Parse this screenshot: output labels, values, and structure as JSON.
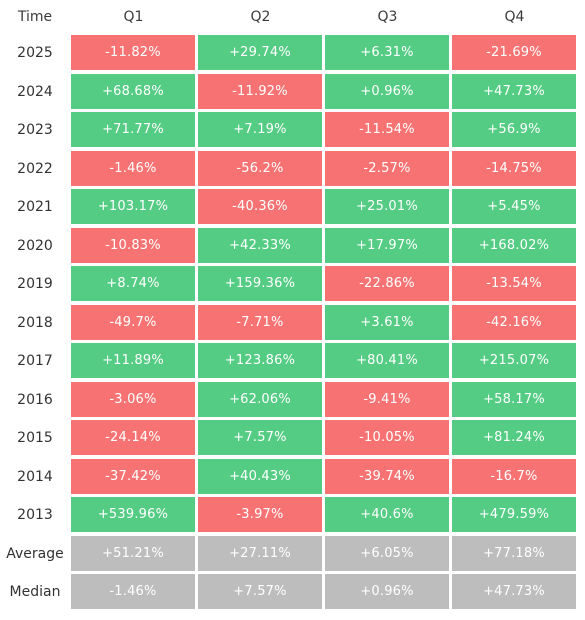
{
  "header": {
    "time_label": "Time",
    "quarters": [
      "Q1",
      "Q2",
      "Q3",
      "Q4"
    ]
  },
  "colors": {
    "positive": "#55cc84",
    "negative": "#f77373",
    "summary": "#bdbdbd"
  },
  "chart_data": {
    "type": "table",
    "columns": [
      "Time",
      "Q1",
      "Q2",
      "Q3",
      "Q4"
    ],
    "rows": [
      {
        "label": "2025",
        "values": [
          "-11.82%",
          "+29.74%",
          "+6.31%",
          "-21.69%"
        ]
      },
      {
        "label": "2024",
        "values": [
          "+68.68%",
          "-11.92%",
          "+0.96%",
          "+47.73%"
        ]
      },
      {
        "label": "2023",
        "values": [
          "+71.77%",
          "+7.19%",
          "-11.54%",
          "+56.9%"
        ]
      },
      {
        "label": "2022",
        "values": [
          "-1.46%",
          "-56.2%",
          "-2.57%",
          "-14.75%"
        ]
      },
      {
        "label": "2021",
        "values": [
          "+103.17%",
          "-40.36%",
          "+25.01%",
          "+5.45%"
        ]
      },
      {
        "label": "2020",
        "values": [
          "-10.83%",
          "+42.33%",
          "+17.97%",
          "+168.02%"
        ]
      },
      {
        "label": "2019",
        "values": [
          "+8.74%",
          "+159.36%",
          "-22.86%",
          "-13.54%"
        ]
      },
      {
        "label": "2018",
        "values": [
          "-49.7%",
          "-7.71%",
          "+3.61%",
          "-42.16%"
        ]
      },
      {
        "label": "2017",
        "values": [
          "+11.89%",
          "+123.86%",
          "+80.41%",
          "+215.07%"
        ]
      },
      {
        "label": "2016",
        "values": [
          "-3.06%",
          "+62.06%",
          "-9.41%",
          "+58.17%"
        ]
      },
      {
        "label": "2015",
        "values": [
          "-24.14%",
          "+7.57%",
          "-10.05%",
          "+81.24%"
        ]
      },
      {
        "label": "2014",
        "values": [
          "-37.42%",
          "+40.43%",
          "-39.74%",
          "-16.7%"
        ]
      },
      {
        "label": "2013",
        "values": [
          "+539.96%",
          "-3.97%",
          "+40.6%",
          "+479.59%"
        ]
      }
    ],
    "summary_rows": [
      {
        "label": "Average",
        "values": [
          "+51.21%",
          "+27.11%",
          "+6.05%",
          "+77.18%"
        ]
      },
      {
        "label": "Median",
        "values": [
          "-1.46%",
          "+7.57%",
          "+0.96%",
          "+47.73%"
        ]
      }
    ]
  }
}
